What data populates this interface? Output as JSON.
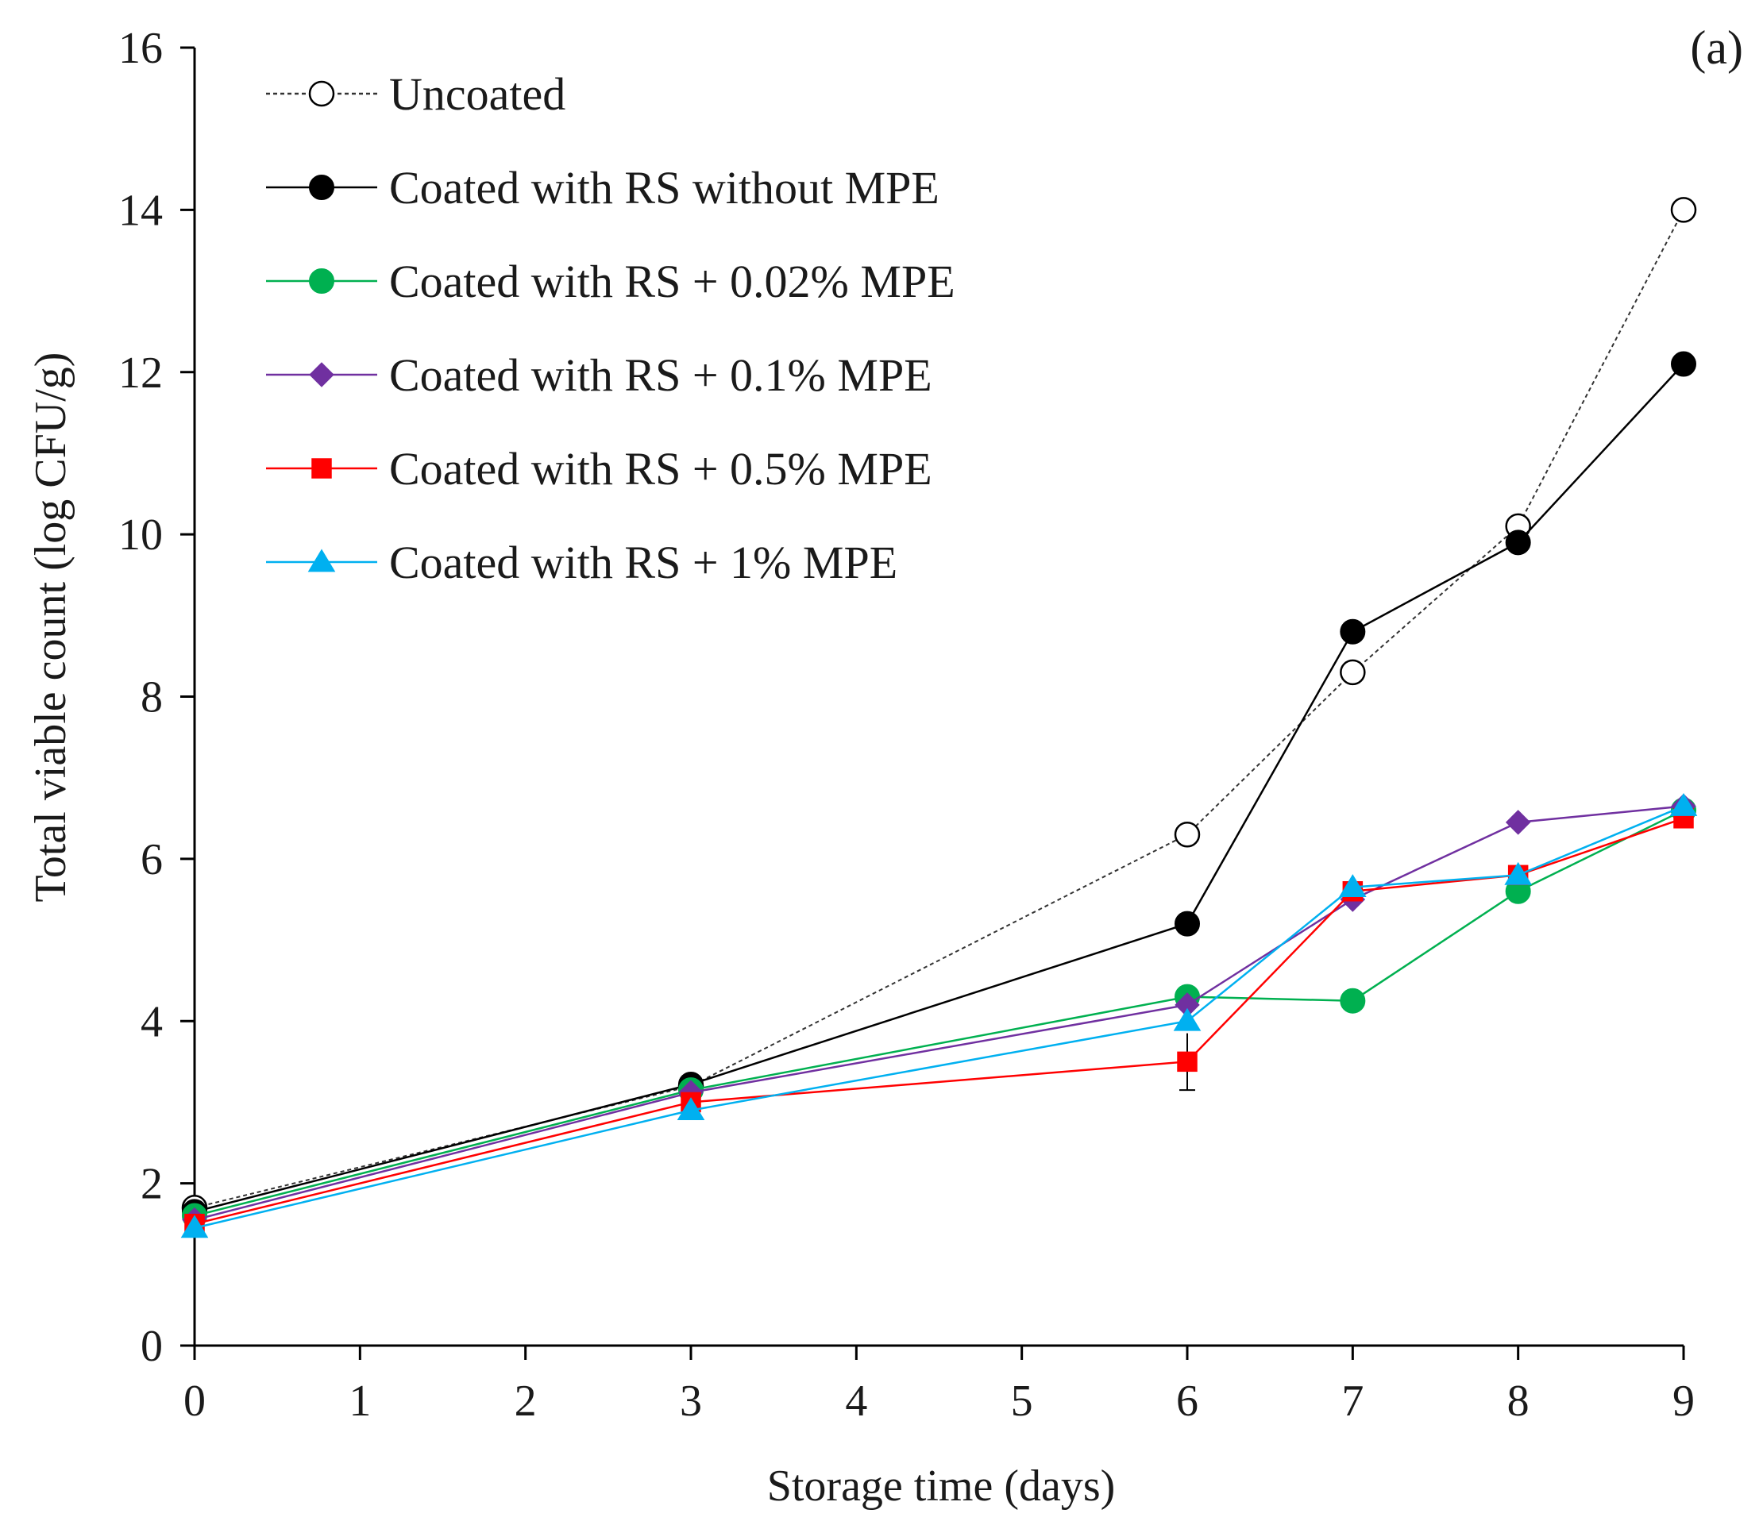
{
  "chart_data": {
    "type": "line",
    "panel_label": "(a)",
    "xlabel": "Storage time (days)",
    "ylabel": "Total viable count (log CFU/g)",
    "xlim": [
      0,
      9
    ],
    "ylim": [
      0,
      16
    ],
    "x_ticks": [
      0,
      1,
      2,
      3,
      4,
      5,
      6,
      7,
      8,
      9
    ],
    "y_ticks": [
      0,
      2,
      4,
      6,
      8,
      10,
      12,
      14,
      16
    ],
    "x": [
      0,
      3,
      6,
      7,
      8,
      9
    ],
    "legend_position": "top-left",
    "grid": false,
    "series": [
      {
        "name": "Uncoated",
        "values": [
          1.7,
          3.2,
          6.3,
          8.3,
          10.1,
          14.0
        ],
        "color": "#333333",
        "marker": "circle-open",
        "line": "dotted"
      },
      {
        "name": "Coated with RS without MPE",
        "values": [
          1.65,
          3.22,
          5.2,
          8.8,
          9.9,
          12.1
        ],
        "color": "#000000",
        "marker": "circle",
        "line": "solid"
      },
      {
        "name": "Coated with RS + 0.02% MPE",
        "values": [
          1.6,
          3.15,
          4.3,
          4.25,
          5.6,
          6.6
        ],
        "color": "#00b050",
        "marker": "circle",
        "line": "solid"
      },
      {
        "name": "Coated with RS + 0.1% MPE",
        "values": [
          1.55,
          3.12,
          4.2,
          5.5,
          6.45,
          6.65
        ],
        "color": "#7030a0",
        "marker": "diamond",
        "line": "solid"
      },
      {
        "name": "Coated with RS + 0.5% MPE",
        "values": [
          1.5,
          3.0,
          3.5,
          5.6,
          5.8,
          6.5
        ],
        "color": "#ff0000",
        "marker": "square",
        "line": "solid"
      },
      {
        "name": "Coated with RS + 1% MPE",
        "values": [
          1.45,
          2.9,
          4.0,
          5.65,
          5.8,
          6.65
        ],
        "color": "#00b0f0",
        "marker": "triangle",
        "line": "solid"
      }
    ]
  }
}
